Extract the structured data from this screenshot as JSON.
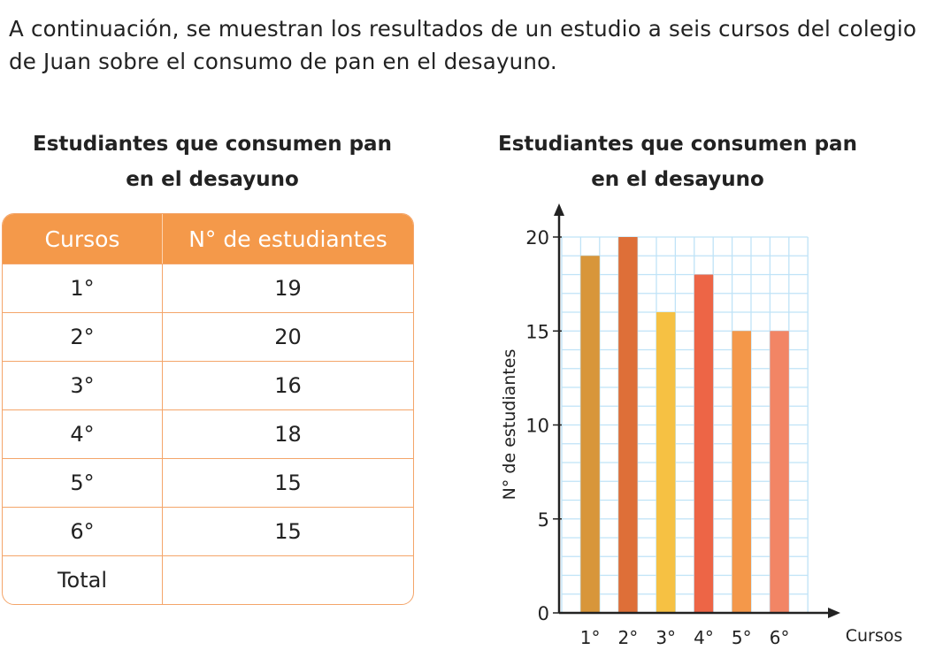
{
  "intro": "A continuación, se muestran los resultados de un estudio a seis cursos del colegio de Juan sobre el consumo de pan en el desayuno.",
  "table": {
    "title": "Estudiantes que consumen pan en el desayuno",
    "headers": [
      "Cursos",
      "N° de estudiantes"
    ],
    "rows": [
      [
        "1°",
        "19"
      ],
      [
        "2°",
        "20"
      ],
      [
        "3°",
        "16"
      ],
      [
        "4°",
        "18"
      ],
      [
        "5°",
        "15"
      ],
      [
        "6°",
        "15"
      ],
      [
        "Total",
        ""
      ]
    ]
  },
  "chart_data": {
    "type": "bar",
    "title": "Estudiantes que consumen pan en el desayuno",
    "xlabel": "Cursos",
    "ylabel": "N° de estudiantes",
    "categories": [
      "1°",
      "2°",
      "3°",
      "4°",
      "5°",
      "6°"
    ],
    "values": [
      19,
      20,
      16,
      18,
      15,
      15
    ],
    "colors": [
      "#d8963a",
      "#de6f38",
      "#f6c143",
      "#ed6546",
      "#f4984a",
      "#f28565"
    ],
    "ylim": [
      0,
      20
    ],
    "yticks": [
      0,
      5,
      10,
      15,
      20
    ],
    "grid": true
  }
}
